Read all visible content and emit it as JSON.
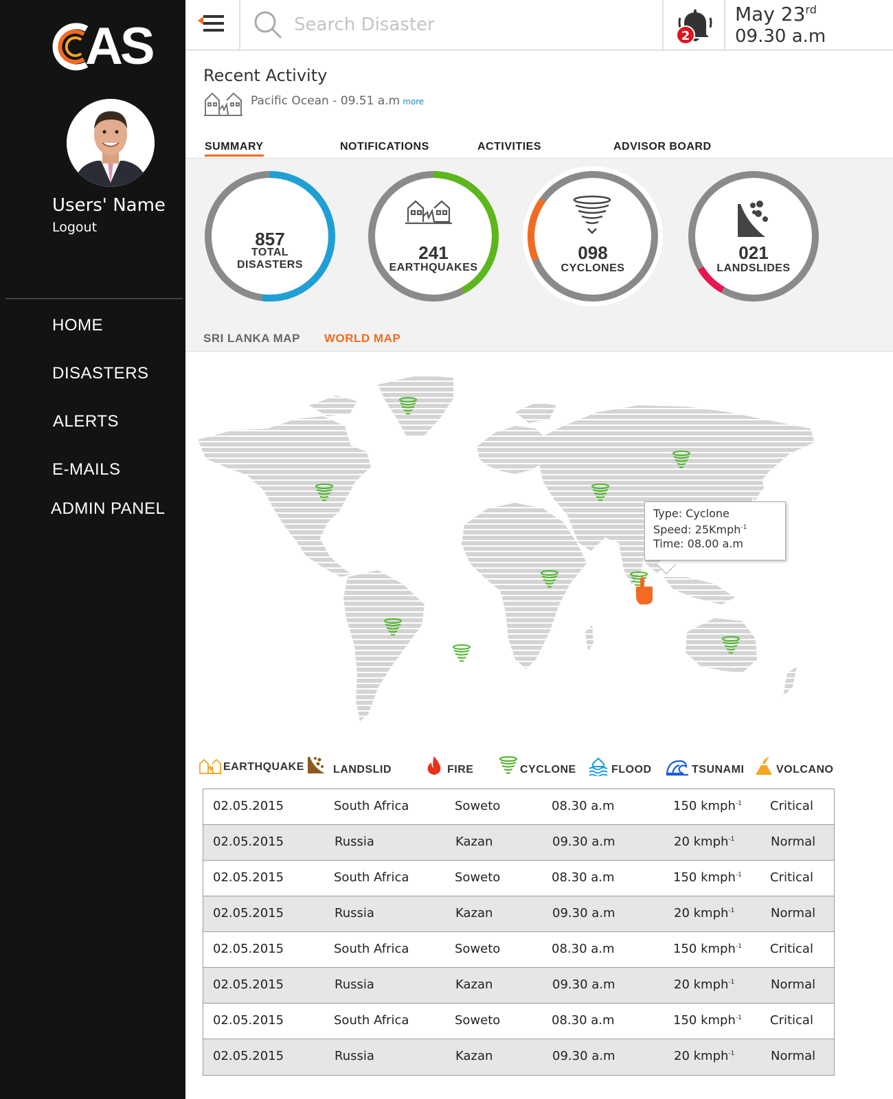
{
  "sidebar": {
    "logo_text": "AS",
    "user_name": "Users' Name",
    "logout": "Logout",
    "nav": [
      {
        "label": "HOME"
      },
      {
        "label": "DISASTERS"
      },
      {
        "label": "ALERTS"
      },
      {
        "label": "E-MAILS"
      },
      {
        "label": "ADMIN PANEL"
      }
    ]
  },
  "topbar": {
    "search_placeholder": "Search Disaster",
    "notification_count": "2",
    "date_main": "May 23",
    "date_suffix": "rd",
    "time": "09.30 a.m"
  },
  "recent": {
    "title": "Recent Activity",
    "text": "Pacific Ocean - 09.51 a.m",
    "more": "more"
  },
  "tabs": [
    {
      "label": "SUMMARY",
      "active": true
    },
    {
      "label": "NOTIFICATIONS"
    },
    {
      "label": "ACTIVITIES"
    },
    {
      "label": "ADVISOR BOARD"
    }
  ],
  "gauges": [
    {
      "value": "857",
      "label1": "TOTAL",
      "label2": "DISASTERS",
      "color": "#1ea0d6",
      "fill": 0.52
    },
    {
      "value": "241",
      "label1": "EARTHQUAKES",
      "label2": "",
      "color": "#5cb81a",
      "fill": 0.42
    },
    {
      "value": "098",
      "label1": "CYCLONES",
      "label2": "",
      "color": "#f26b21",
      "fill": 0.16
    },
    {
      "value": "021",
      "label1": "LANDSLIDES",
      "label2": "",
      "color": "#e8174d",
      "fill": 0.08
    }
  ],
  "map_tabs": [
    {
      "label": "SRI LANKA MAP",
      "color": "#666666"
    },
    {
      "label": "WORLD MAP",
      "color": "#f26b21"
    }
  ],
  "tooltip": {
    "type": "Type: Cyclone",
    "speed": "Speed: 25Kmph",
    "speed_sup": "-1",
    "time": "Time: 08.00 a.m"
  },
  "legend": [
    {
      "label": "EARTHQUAKE",
      "icon": "earthquake-icon",
      "color": "#f5a623"
    },
    {
      "label": "LANDSLID",
      "icon": "landslide-icon",
      "color": "#8b5a1e"
    },
    {
      "label": "FIRE",
      "icon": "fire-icon",
      "color": "#e8301a"
    },
    {
      "label": "CYCLONE",
      "icon": "cyclone-icon",
      "color": "#4caf28"
    },
    {
      "label": "FLOOD",
      "icon": "flood-icon",
      "color": "#1a9ee0"
    },
    {
      "label": "TSUNAMI",
      "icon": "tsunami-icon",
      "color": "#1a5ee0"
    },
    {
      "label": "VOLCANO",
      "icon": "volcano-icon",
      "color": "#f5a623"
    }
  ],
  "table": [
    {
      "date": "02.05.2015",
      "country": "South Africa",
      "city": "Soweto",
      "time": "08.30 a.m",
      "speed": "150 kmph",
      "sup": "-1",
      "status": "Critical"
    },
    {
      "date": "02.05.2015",
      "country": "Russia",
      "city": "Kazan",
      "time": "09.30 a.m",
      "speed": "20 kmph",
      "sup": "-1",
      "status": "Normal"
    },
    {
      "date": "02.05.2015",
      "country": "South Africa",
      "city": "Soweto",
      "time": "08.30 a.m",
      "speed": "150 kmph",
      "sup": "-1",
      "status": "Critical"
    },
    {
      "date": "02.05.2015",
      "country": "Russia",
      "city": "Kazan",
      "time": "09.30 a.m",
      "speed": "20 kmph",
      "sup": "-1",
      "status": "Normal"
    },
    {
      "date": "02.05.2015",
      "country": "South Africa",
      "city": "Soweto",
      "time": "08.30 a.m",
      "speed": "150 kmph",
      "sup": "-1",
      "status": "Critical"
    },
    {
      "date": "02.05.2015",
      "country": "Russia",
      "city": "Kazan",
      "time": "09.30 a.m",
      "speed": "20 kmph",
      "sup": "-1",
      "status": "Normal"
    },
    {
      "date": "02.05.2015",
      "country": "South Africa",
      "city": "Soweto",
      "time": "08.30 a.m",
      "speed": "150 kmph",
      "sup": "-1",
      "status": "Critical"
    },
    {
      "date": "02.05.2015",
      "country": "Russia",
      "city": "Kazan",
      "time": "09.30 a.m",
      "speed": "20 kmph",
      "sup": "-1",
      "status": "Normal"
    }
  ],
  "accent": "#f26b21"
}
